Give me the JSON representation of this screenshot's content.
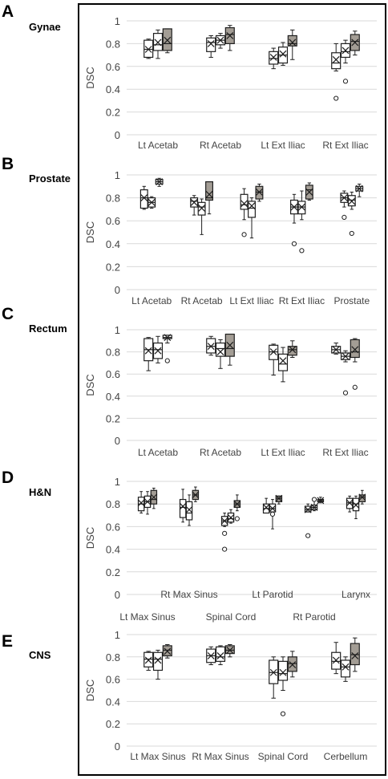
{
  "chart_data": [
    {
      "panel": "A",
      "group_label": "Gynae",
      "type": "box",
      "ylabel": "DSC",
      "ylim": [
        0,
        1
      ],
      "yticks": [
        "0",
        "0.2",
        "0.4",
        "0.6",
        "0.8",
        "1"
      ],
      "grid": true,
      "categories": [
        "Lt Acetab",
        "Rt Acetab",
        "Lt Ext Iliac",
        "Rt Ext Iliac"
      ],
      "boxes": [
        [
          {
            "min": 0.67,
            "q1": 0.68,
            "median": 0.75,
            "q3": 0.83,
            "max": 0.84,
            "mean": 0.75,
            "fill": "white",
            "outliers": []
          },
          {
            "min": 0.67,
            "q1": 0.74,
            "median": 0.79,
            "q3": 0.89,
            "max": 0.92,
            "mean": 0.81,
            "fill": "white",
            "outliers": []
          },
          {
            "min": 0.72,
            "q1": 0.74,
            "median": 0.8,
            "q3": 0.93,
            "max": 0.93,
            "mean": 0.83,
            "fill": "gray",
            "outliers": []
          }
        ],
        [
          {
            "min": 0.68,
            "q1": 0.73,
            "median": 0.81,
            "q3": 0.85,
            "max": 0.87,
            "mean": 0.8,
            "fill": "white",
            "outliers": []
          },
          {
            "min": 0.76,
            "q1": 0.79,
            "median": 0.83,
            "q3": 0.87,
            "max": 0.89,
            "mean": 0.83,
            "fill": "white",
            "outliers": []
          },
          {
            "min": 0.74,
            "q1": 0.8,
            "median": 0.88,
            "q3": 0.94,
            "max": 0.96,
            "mean": 0.87,
            "fill": "gray",
            "outliers": []
          }
        ],
        [
          {
            "min": 0.58,
            "q1": 0.62,
            "median": 0.67,
            "q3": 0.73,
            "max": 0.76,
            "mean": 0.68,
            "fill": "white",
            "outliers": []
          },
          {
            "min": 0.61,
            "q1": 0.63,
            "median": 0.7,
            "q3": 0.77,
            "max": 0.81,
            "mean": 0.71,
            "fill": "white",
            "outliers": []
          },
          {
            "min": 0.66,
            "q1": 0.78,
            "median": 0.8,
            "q3": 0.87,
            "max": 0.92,
            "mean": 0.81,
            "fill": "gray",
            "outliers": []
          }
        ],
        [
          {
            "min": 0.56,
            "q1": 0.58,
            "median": 0.63,
            "q3": 0.72,
            "max": 0.8,
            "mean": 0.66,
            "fill": "white",
            "outliers": [
              0.32
            ]
          },
          {
            "min": 0.63,
            "q1": 0.68,
            "median": 0.73,
            "q3": 0.8,
            "max": 0.83,
            "mean": 0.74,
            "fill": "white",
            "outliers": [
              0.47
            ]
          },
          {
            "min": 0.7,
            "q1": 0.74,
            "median": 0.82,
            "q3": 0.88,
            "max": 0.91,
            "mean": 0.81,
            "fill": "gray",
            "outliers": []
          }
        ]
      ]
    },
    {
      "panel": "B",
      "group_label": "Prostate",
      "type": "box",
      "ylabel": "DSC",
      "ylim": [
        0,
        1
      ],
      "yticks": [
        "0",
        "0.2",
        "0.4",
        "0.6",
        "0.8",
        "1"
      ],
      "grid": true,
      "categories": [
        "Lt Acetab",
        "Rt Acetab",
        "Lt Ext Iliac",
        "Rt Ext Iliac",
        "Prostate"
      ],
      "boxes": [
        [
          {
            "min": 0.7,
            "q1": 0.71,
            "median": 0.8,
            "q3": 0.87,
            "max": 0.9,
            "mean": 0.8,
            "fill": "white",
            "outliers": []
          },
          {
            "min": 0.71,
            "q1": 0.72,
            "median": 0.76,
            "q3": 0.8,
            "max": 0.81,
            "mean": 0.76,
            "fill": "white",
            "outliers": []
          },
          {
            "min": 0.9,
            "q1": 0.92,
            "median": 0.94,
            "q3": 0.96,
            "max": 0.97,
            "mean": 0.94,
            "fill": "white",
            "outliers": []
          }
        ],
        [
          {
            "min": 0.65,
            "q1": 0.72,
            "median": 0.77,
            "q3": 0.8,
            "max": 0.82,
            "mean": 0.76,
            "fill": "white",
            "outliers": []
          },
          {
            "min": 0.48,
            "q1": 0.65,
            "median": 0.72,
            "q3": 0.76,
            "max": 0.79,
            "mean": 0.71,
            "fill": "white",
            "outliers": []
          },
          {
            "min": 0.66,
            "q1": 0.78,
            "median": 0.8,
            "q3": 0.94,
            "max": 0.94,
            "mean": 0.83,
            "fill": "gray",
            "outliers": []
          }
        ],
        [
          {
            "min": 0.61,
            "q1": 0.7,
            "median": 0.74,
            "q3": 0.83,
            "max": 0.88,
            "mean": 0.75,
            "fill": "white",
            "outliers": [
              0.48
            ]
          },
          {
            "min": 0.45,
            "q1": 0.63,
            "median": 0.71,
            "q3": 0.77,
            "max": 0.8,
            "mean": 0.73,
            "fill": "white",
            "outliers": []
          },
          {
            "min": 0.77,
            "q1": 0.79,
            "median": 0.85,
            "q3": 0.9,
            "max": 0.92,
            "mean": 0.85,
            "fill": "gray",
            "outliers": []
          }
        ],
        [
          {
            "min": 0.58,
            "q1": 0.66,
            "median": 0.72,
            "q3": 0.78,
            "max": 0.83,
            "mean": 0.72,
            "fill": "white",
            "outliers": [
              0.4
            ]
          },
          {
            "min": 0.61,
            "q1": 0.66,
            "median": 0.72,
            "q3": 0.77,
            "max": 0.86,
            "mean": 0.72,
            "fill": "white",
            "outliers": [
              0.34
            ]
          },
          {
            "min": 0.78,
            "q1": 0.79,
            "median": 0.87,
            "q3": 0.91,
            "max": 0.93,
            "mean": 0.85,
            "fill": "gray",
            "outliers": []
          }
        ],
        [
          {
            "min": 0.72,
            "q1": 0.76,
            "median": 0.8,
            "q3": 0.84,
            "max": 0.86,
            "mean": 0.8,
            "fill": "white",
            "outliers": [
              0.63
            ]
          },
          {
            "min": 0.7,
            "q1": 0.73,
            "median": 0.78,
            "q3": 0.82,
            "max": 0.85,
            "mean": 0.77,
            "fill": "white",
            "outliers": [
              0.49
            ]
          },
          {
            "min": 0.81,
            "q1": 0.86,
            "median": 0.88,
            "q3": 0.9,
            "max": 0.92,
            "mean": 0.88,
            "fill": "white",
            "outliers": []
          }
        ]
      ]
    },
    {
      "panel": "C",
      "group_label": "Rectum",
      "type": "box",
      "ylabel": "DSC",
      "ylim": [
        0,
        1
      ],
      "yticks": [
        "0",
        "0.2",
        "0.4",
        "0.6",
        "0.8",
        "1"
      ],
      "grid": true,
      "categories": [
        "Lt Acetab",
        "Rt Acetab",
        "Lt Ext Iliac",
        "Rt Ext Iliac"
      ],
      "boxes": [
        [
          {
            "min": 0.63,
            "q1": 0.72,
            "median": 0.82,
            "q3": 0.92,
            "max": 0.93,
            "mean": 0.81,
            "fill": "white",
            "outliers": []
          },
          {
            "min": 0.7,
            "q1": 0.74,
            "median": 0.82,
            "q3": 0.88,
            "max": 0.94,
            "mean": 0.81,
            "fill": "white",
            "outliers": []
          },
          {
            "min": 0.88,
            "q1": 0.92,
            "median": 0.93,
            "q3": 0.95,
            "max": 0.95,
            "mean": 0.93,
            "fill": "white",
            "outliers": [
              0.72
            ]
          }
        ],
        [
          {
            "min": 0.77,
            "q1": 0.79,
            "median": 0.85,
            "q3": 0.92,
            "max": 0.94,
            "mean": 0.85,
            "fill": "white",
            "outliers": []
          },
          {
            "min": 0.65,
            "q1": 0.76,
            "median": 0.83,
            "q3": 0.88,
            "max": 0.91,
            "mean": 0.8,
            "fill": "white",
            "outliers": []
          },
          {
            "min": 0.68,
            "q1": 0.76,
            "median": 0.83,
            "q3": 0.96,
            "max": 0.96,
            "mean": 0.86,
            "fill": "gray",
            "outliers": []
          }
        ],
        [
          {
            "min": 0.59,
            "q1": 0.73,
            "median": 0.8,
            "q3": 0.86,
            "max": 0.87,
            "mean": 0.8,
            "fill": "white",
            "outliers": []
          },
          {
            "min": 0.53,
            "q1": 0.63,
            "median": 0.69,
            "q3": 0.78,
            "max": 0.84,
            "mean": 0.72,
            "fill": "white",
            "outliers": []
          },
          {
            "min": 0.75,
            "q1": 0.77,
            "median": 0.82,
            "q3": 0.85,
            "max": 0.9,
            "mean": 0.82,
            "fill": "gray",
            "outliers": []
          }
        ],
        [
          {
            "min": 0.78,
            "q1": 0.79,
            "median": 0.82,
            "q3": 0.85,
            "max": 0.88,
            "mean": 0.82,
            "fill": "white",
            "outliers": []
          },
          {
            "min": 0.71,
            "q1": 0.73,
            "median": 0.76,
            "q3": 0.79,
            "max": 0.81,
            "mean": 0.76,
            "fill": "white",
            "outliers": [
              0.43
            ]
          },
          {
            "min": 0.71,
            "q1": 0.75,
            "median": 0.8,
            "q3": 0.91,
            "max": 0.92,
            "mean": 0.82,
            "fill": "gray",
            "outliers": [
              0.48
            ]
          }
        ]
      ]
    },
    {
      "panel": "D",
      "group_label": "H&N",
      "type": "box",
      "ylabel": "DSC",
      "ylim": [
        0,
        1
      ],
      "yticks": [
        "0",
        "0.2",
        "0.4",
        "0.6",
        "0.8",
        "1"
      ],
      "grid": true,
      "categories": [
        "Lt Max Sinus",
        "Rt Max Sinus",
        "Spinal Cord",
        "Lt Parotid",
        "Rt Parotid",
        "Larynx"
      ],
      "boxes": [
        [
          {
            "min": 0.72,
            "q1": 0.74,
            "median": 0.8,
            "q3": 0.86,
            "max": 0.91,
            "mean": 0.81,
            "fill": "white",
            "outliers": []
          },
          {
            "min": 0.71,
            "q1": 0.77,
            "median": 0.82,
            "q3": 0.87,
            "max": 0.91,
            "mean": 0.82,
            "fill": "white",
            "outliers": []
          },
          {
            "min": 0.76,
            "q1": 0.8,
            "median": 0.84,
            "q3": 0.92,
            "max": 0.94,
            "mean": 0.86,
            "fill": "gray",
            "outliers": []
          }
        ],
        [
          {
            "min": 0.64,
            "q1": 0.68,
            "median": 0.77,
            "q3": 0.84,
            "max": 0.93,
            "mean": 0.78,
            "fill": "white",
            "outliers": []
          },
          {
            "min": 0.61,
            "q1": 0.66,
            "median": 0.72,
            "q3": 0.82,
            "max": 0.88,
            "mean": 0.75,
            "fill": "white",
            "outliers": []
          },
          {
            "min": 0.82,
            "q1": 0.84,
            "median": 0.88,
            "q3": 0.92,
            "max": 0.95,
            "mean": 0.88,
            "fill": "gray",
            "outliers": []
          }
        ],
        [
          {
            "min": 0.6,
            "q1": 0.61,
            "median": 0.65,
            "q3": 0.69,
            "max": 0.72,
            "mean": 0.65,
            "fill": "white",
            "outliers": [
              0.54,
              0.4
            ]
          },
          {
            "min": 0.63,
            "q1": 0.64,
            "median": 0.67,
            "q3": 0.72,
            "max": 0.75,
            "mean": 0.68,
            "fill": "white",
            "outliers": []
          },
          {
            "min": 0.74,
            "q1": 0.77,
            "median": 0.8,
            "q3": 0.83,
            "max": 0.88,
            "mean": 0.8,
            "fill": "gray",
            "outliers": [
              0.67
            ]
          }
        ],
        [
          {
            "min": 0.72,
            "q1": 0.72,
            "median": 0.76,
            "q3": 0.8,
            "max": 0.85,
            "mean": 0.77,
            "fill": "white",
            "outliers": []
          },
          {
            "min": 0.58,
            "q1": 0.73,
            "median": 0.76,
            "q3": 0.8,
            "max": 0.84,
            "mean": 0.76,
            "fill": "white",
            "outliers": [
              0.71
            ]
          },
          {
            "min": 0.8,
            "q1": 0.82,
            "median": 0.85,
            "q3": 0.87,
            "max": 0.87,
            "mean": 0.85,
            "fill": "gray",
            "outliers": []
          }
        ],
        [
          {
            "min": 0.73,
            "q1": 0.73,
            "median": 0.75,
            "q3": 0.78,
            "max": 0.8,
            "mean": 0.75,
            "fill": "white",
            "outliers": [
              0.52
            ]
          },
          {
            "min": 0.74,
            "q1": 0.75,
            "median": 0.77,
            "q3": 0.79,
            "max": 0.84,
            "mean": 0.77,
            "fill": "white",
            "outliers": [
              0.84
            ]
          },
          {
            "min": 0.81,
            "q1": 0.82,
            "median": 0.83,
            "q3": 0.84,
            "max": 0.86,
            "mean": 0.83,
            "fill": "gray",
            "outliers": []
          }
        ],
        [
          {
            "min": 0.73,
            "q1": 0.76,
            "median": 0.81,
            "q3": 0.85,
            "max": 0.87,
            "mean": 0.81,
            "fill": "white",
            "outliers": []
          },
          {
            "min": 0.67,
            "q1": 0.74,
            "median": 0.8,
            "q3": 0.85,
            "max": 0.87,
            "mean": 0.79,
            "fill": "white",
            "outliers": []
          },
          {
            "min": 0.8,
            "q1": 0.82,
            "median": 0.86,
            "q3": 0.88,
            "max": 0.92,
            "mean": 0.86,
            "fill": "gray",
            "outliers": []
          }
        ]
      ]
    },
    {
      "panel": "E",
      "group_label": "CNS",
      "type": "box",
      "ylabel": "DSC",
      "ylim": [
        0,
        1
      ],
      "yticks": [
        "0",
        "0.2",
        "0.4",
        "0.6",
        "0.8",
        "1"
      ],
      "grid": true,
      "categories": [
        "Lt Max Sinus",
        "Rt Max Sinus",
        "Spinal Cord",
        "Cerbellum"
      ],
      "boxes": [
        [
          {
            "min": 0.68,
            "q1": 0.71,
            "median": 0.78,
            "q3": 0.84,
            "max": 0.85,
            "mean": 0.77,
            "fill": "white",
            "outliers": []
          },
          {
            "min": 0.6,
            "q1": 0.68,
            "median": 0.78,
            "q3": 0.84,
            "max": 0.86,
            "mean": 0.77,
            "fill": "white",
            "outliers": []
          },
          {
            "min": 0.79,
            "q1": 0.81,
            "median": 0.86,
            "q3": 0.9,
            "max": 0.91,
            "mean": 0.85,
            "fill": "gray",
            "outliers": []
          }
        ],
        [
          {
            "min": 0.73,
            "q1": 0.75,
            "median": 0.81,
            "q3": 0.87,
            "max": 0.89,
            "mean": 0.81,
            "fill": "white",
            "outliers": []
          },
          {
            "min": 0.73,
            "q1": 0.76,
            "median": 0.8,
            "q3": 0.89,
            "max": 0.9,
            "mean": 0.81,
            "fill": "white",
            "outliers": []
          },
          {
            "min": 0.8,
            "q1": 0.83,
            "median": 0.86,
            "q3": 0.9,
            "max": 0.91,
            "mean": 0.86,
            "fill": "gray",
            "outliers": []
          }
        ],
        [
          {
            "min": 0.43,
            "q1": 0.56,
            "median": 0.66,
            "q3": 0.77,
            "max": 0.8,
            "mean": 0.66,
            "fill": "white",
            "outliers": []
          },
          {
            "min": 0.5,
            "q1": 0.59,
            "median": 0.65,
            "q3": 0.76,
            "max": 0.8,
            "mean": 0.66,
            "fill": "white",
            "outliers": [
              0.29
            ]
          },
          {
            "min": 0.62,
            "q1": 0.67,
            "median": 0.74,
            "q3": 0.8,
            "max": 0.85,
            "mean": 0.73,
            "fill": "gray",
            "outliers": []
          }
        ],
        [
          {
            "min": 0.65,
            "q1": 0.69,
            "median": 0.76,
            "q3": 0.84,
            "max": 0.93,
            "mean": 0.77,
            "fill": "white",
            "outliers": []
          },
          {
            "min": 0.58,
            "q1": 0.62,
            "median": 0.71,
            "q3": 0.77,
            "max": 0.8,
            "mean": 0.71,
            "fill": "white",
            "outliers": []
          },
          {
            "min": 0.67,
            "q1": 0.73,
            "median": 0.82,
            "q3": 0.92,
            "max": 0.97,
            "mean": 0.81,
            "fill": "gray",
            "outliers": []
          }
        ]
      ]
    }
  ],
  "colors": {
    "box_white": "#ffffff",
    "box_gray": "#a39d95",
    "stroke": "#1f1f1f",
    "grid": "#d9d9d9",
    "text": "#444444"
  }
}
